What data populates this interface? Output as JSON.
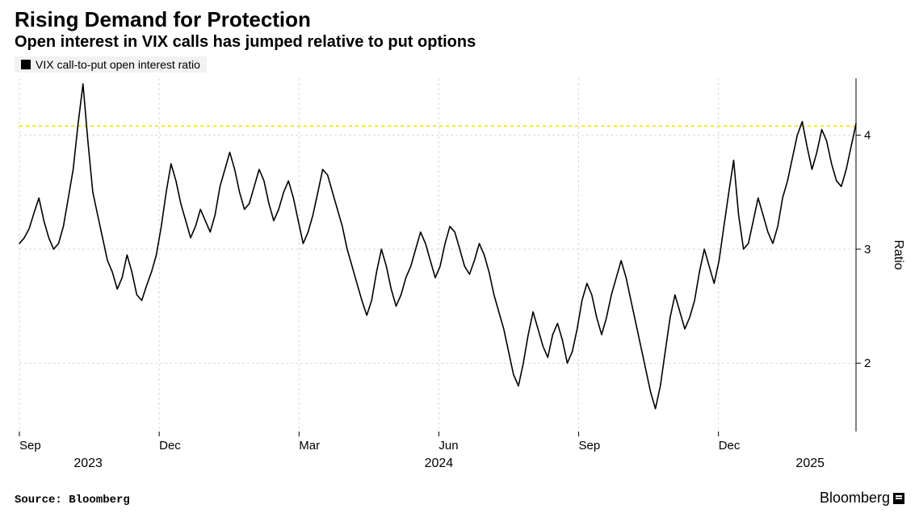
{
  "title": "Rising Demand for Protection",
  "subtitle": "Open interest in VIX calls has jumped relative to put options",
  "legend": {
    "label": "VIX call-to-put open interest ratio",
    "swatch_color": "#000000"
  },
  "source": "Source: Bloomberg",
  "brand": "Bloomberg",
  "chart": {
    "type": "line",
    "background_color": "#ffffff",
    "grid_color": "#d9d9d9",
    "line_color": "#000000",
    "line_width": 1.6,
    "reference_line": {
      "value": 4.08,
      "color": "#f4e400",
      "dash": "4,4",
      "width": 1.8
    },
    "y_axis": {
      "label": "Ratio",
      "side": "right",
      "lim": [
        1.4,
        4.5
      ],
      "ticks": [
        2,
        3,
        4
      ],
      "label_fontsize": 16,
      "tick_fontsize": 15
    },
    "x_axis": {
      "lim": [
        0,
        365
      ],
      "month_ticks": [
        {
          "pos": 0,
          "label": "Sep"
        },
        {
          "pos": 61,
          "label": "Dec"
        },
        {
          "pos": 122,
          "label": "Mar"
        },
        {
          "pos": 183,
          "label": "Jun"
        },
        {
          "pos": 244,
          "label": "Sep"
        },
        {
          "pos": 305,
          "label": "Dec"
        }
      ],
      "year_ticks": [
        {
          "pos": 30,
          "label": "2023"
        },
        {
          "pos": 183,
          "label": "2024"
        },
        {
          "pos": 345,
          "label": "2025"
        }
      ],
      "tick_fontsize": 15,
      "year_fontsize": 16
    },
    "series": [
      {
        "name": "vix_call_put_ratio",
        "values": [
          3.05,
          3.1,
          3.18,
          3.32,
          3.45,
          3.25,
          3.1,
          3.0,
          3.05,
          3.2,
          3.45,
          3.7,
          4.1,
          4.45,
          3.95,
          3.5,
          3.3,
          3.1,
          2.9,
          2.8,
          2.65,
          2.75,
          2.95,
          2.8,
          2.6,
          2.55,
          2.68,
          2.8,
          2.95,
          3.2,
          3.5,
          3.75,
          3.6,
          3.4,
          3.25,
          3.1,
          3.2,
          3.35,
          3.25,
          3.15,
          3.3,
          3.55,
          3.7,
          3.85,
          3.7,
          3.5,
          3.35,
          3.4,
          3.55,
          3.7,
          3.6,
          3.4,
          3.25,
          3.35,
          3.5,
          3.6,
          3.45,
          3.25,
          3.05,
          3.15,
          3.3,
          3.5,
          3.7,
          3.65,
          3.5,
          3.35,
          3.2,
          3.0,
          2.85,
          2.7,
          2.55,
          2.42,
          2.55,
          2.8,
          3.0,
          2.85,
          2.65,
          2.5,
          2.6,
          2.75,
          2.85,
          3.0,
          3.15,
          3.05,
          2.9,
          2.75,
          2.85,
          3.05,
          3.2,
          3.15,
          3.0,
          2.85,
          2.78,
          2.9,
          3.05,
          2.95,
          2.8,
          2.6,
          2.45,
          2.3,
          2.1,
          1.9,
          1.8,
          2.0,
          2.25,
          2.45,
          2.3,
          2.15,
          2.05,
          2.25,
          2.35,
          2.2,
          2.0,
          2.1,
          2.3,
          2.55,
          2.7,
          2.6,
          2.4,
          2.25,
          2.4,
          2.6,
          2.75,
          2.9,
          2.75,
          2.55,
          2.35,
          2.15,
          1.95,
          1.75,
          1.6,
          1.8,
          2.1,
          2.4,
          2.6,
          2.45,
          2.3,
          2.4,
          2.55,
          2.8,
          3.0,
          2.85,
          2.7,
          2.9,
          3.2,
          3.5,
          3.78,
          3.3,
          3.0,
          3.05,
          3.25,
          3.45,
          3.3,
          3.15,
          3.05,
          3.2,
          3.45,
          3.6,
          3.8,
          4.0,
          4.12,
          3.9,
          3.7,
          3.85,
          4.05,
          3.95,
          3.75,
          3.6,
          3.55,
          3.7,
          3.9,
          4.1
        ]
      }
    ]
  }
}
